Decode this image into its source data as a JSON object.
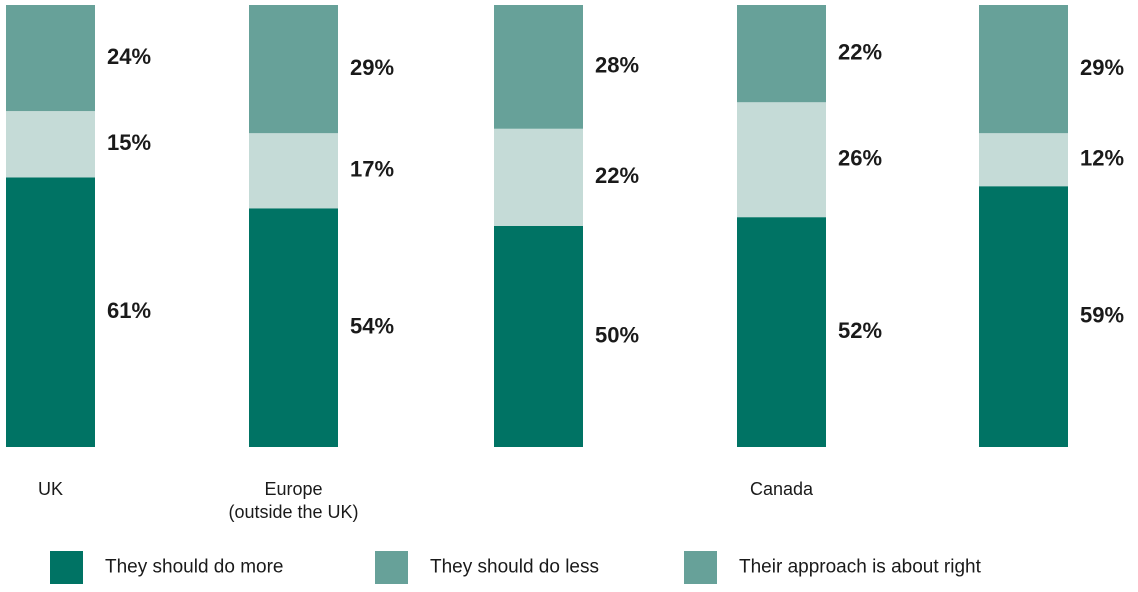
{
  "chart_data": {
    "type": "bar",
    "stacked": true,
    "orientation": "vertical",
    "legend_position": "bottom",
    "grid": false,
    "ylim": [
      0,
      100
    ],
    "title": "",
    "xlabel": "",
    "ylabel": "",
    "categories": [
      {
        "lines": [
          "UK"
        ]
      },
      {
        "lines": [
          "Europe",
          "(outside the UK)"
        ]
      },
      {
        "lines": [
          ""
        ]
      },
      {
        "lines": [
          "Canada"
        ]
      },
      {
        "lines": [
          ""
        ]
      }
    ],
    "series": [
      {
        "name": "They should do more",
        "color": "#007364",
        "values": [
          61,
          54,
          50,
          52,
          59
        ]
      },
      {
        "name": "They should do less",
        "color": "#c5dbd7",
        "values": [
          15,
          17,
          22,
          26,
          12
        ]
      },
      {
        "name": "Their approach is about right",
        "color": "#67a199",
        "values": [
          24,
          29,
          28,
          22,
          29
        ]
      }
    ],
    "legend_swatch_color": "#67a199"
  }
}
